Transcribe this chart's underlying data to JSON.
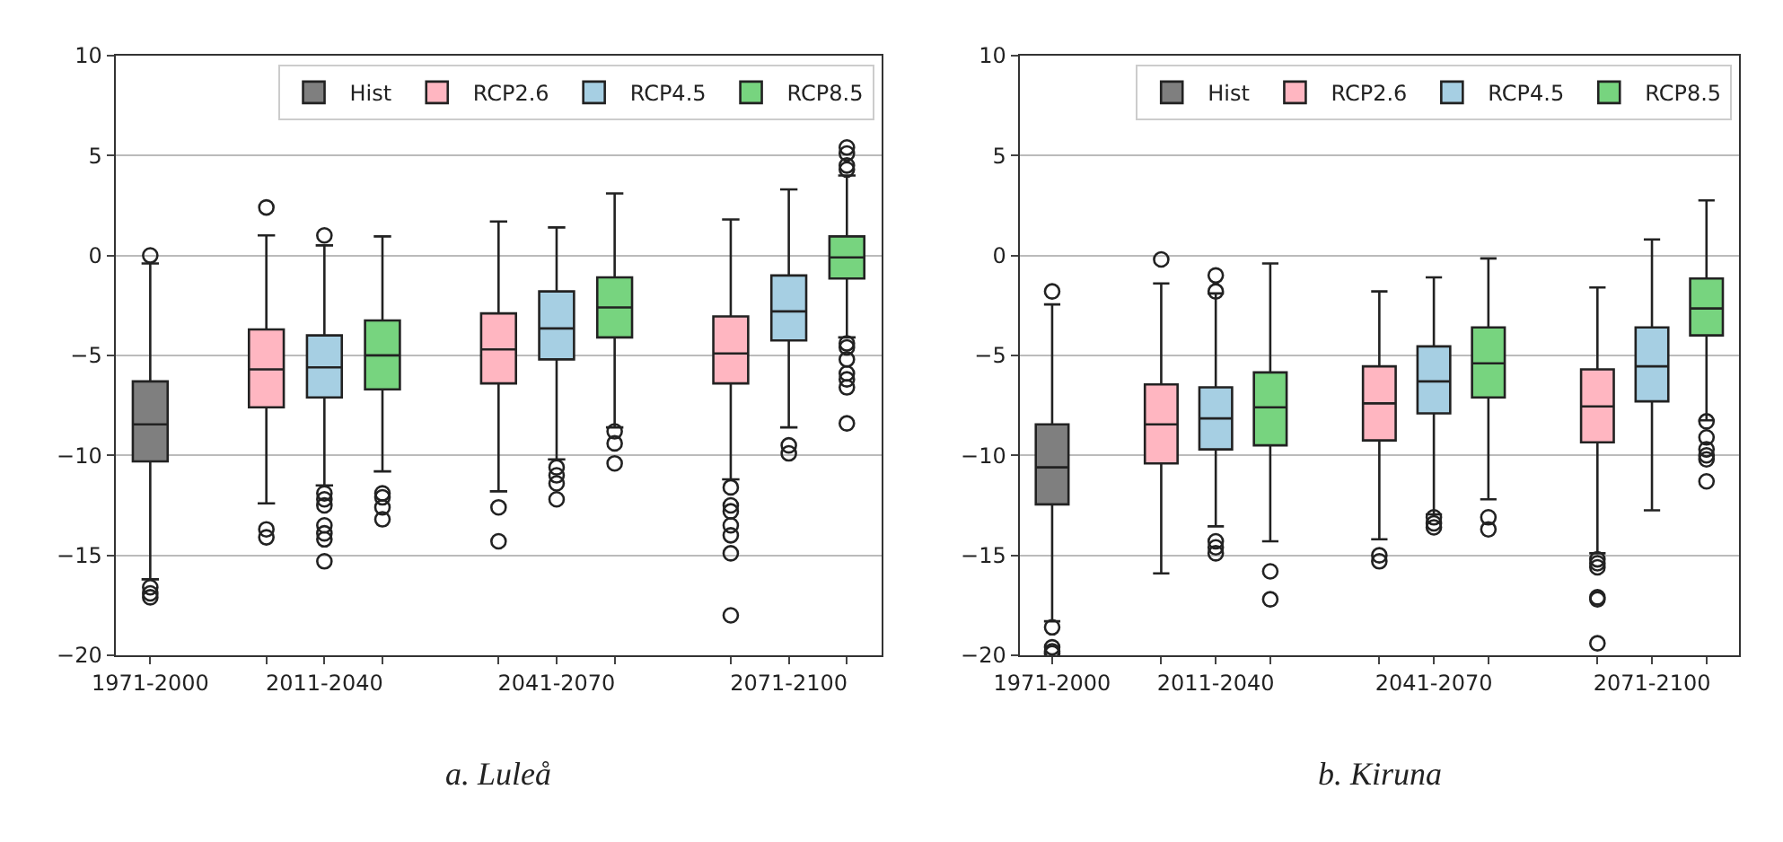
{
  "chart_data": [
    {
      "type": "box",
      "annotations": [
        "a. Luleå"
      ],
      "ylim": [
        -20,
        10
      ],
      "yticks": [
        -20,
        -15,
        -10,
        -5,
        0,
        5,
        10
      ],
      "grid": "y",
      "legend": "top right",
      "categories": [
        "1971-2000",
        null,
        null,
        "2011-2040",
        null,
        null,
        null,
        "2041-2070",
        null,
        null,
        null,
        "2071-2100",
        null
      ],
      "series": [
        {
          "name": "Hist",
          "color": "#7f7f7f",
          "boxes": [
            {
              "low": -16.2,
              "q1": -10.3,
              "median": -8.45,
              "q3": -6.3,
              "high": -0.4,
              "outliers": [
                0,
                -16.6,
                -16.9,
                -17.1
              ]
            },
            null,
            null,
            null,
            null,
            null,
            null,
            null,
            null,
            null,
            null,
            null,
            null
          ]
        },
        {
          "name": "RCP2.6",
          "color": "#ffb6c1",
          "boxes": [
            null,
            null,
            {
              "low": -12.4,
              "q1": -7.6,
              "median": -5.7,
              "q3": -3.7,
              "high": 1.0,
              "outliers": [
                2.4,
                -13.7,
                -14.1
              ]
            },
            null,
            null,
            null,
            {
              "low": -11.8,
              "q1": -6.4,
              "median": -4.7,
              "q3": -2.9,
              "high": 1.7,
              "outliers": [
                -12.6,
                -14.3
              ]
            },
            null,
            null,
            null,
            {
              "low": -11.2,
              "q1": -6.4,
              "median": -4.9,
              "q3": -3.05,
              "high": 1.8,
              "outliers": [
                -11.6,
                -12.5,
                -12.8,
                -13.5,
                -14.0,
                -14.9,
                -18.0
              ]
            },
            null,
            null
          ]
        },
        {
          "name": "RCP4.5",
          "color": "#a6cfe3",
          "boxes": [
            null,
            null,
            null,
            {
              "low": -11.5,
              "q1": -7.1,
              "median": -5.6,
              "q3": -4.0,
              "high": 0.5,
              "outliers": [
                1.0,
                -11.9,
                -12.2,
                -12.5,
                -13.5,
                -13.9,
                -14.2,
                -15.3
              ]
            },
            null,
            null,
            null,
            {
              "low": -10.2,
              "q1": -5.2,
              "median": -3.65,
              "q3": -1.8,
              "high": 1.4,
              "outliers": [
                -10.6,
                -11.0,
                -11.4,
                -12.2
              ]
            },
            null,
            null,
            null,
            {
              "low": -8.6,
              "q1": -4.25,
              "median": -2.8,
              "q3": -1.0,
              "high": 3.3,
              "outliers": [
                -9.5,
                -9.9
              ]
            },
            null
          ]
        },
        {
          "name": "RCP8.5",
          "color": "#77d47f",
          "boxes": [
            null,
            null,
            null,
            null,
            {
              "low": -10.8,
              "q1": -6.7,
              "median": -5.0,
              "q3": -3.25,
              "high": 0.95,
              "outliers": [
                -11.9,
                -12.1,
                -12.6,
                -13.2
              ]
            },
            null,
            null,
            null,
            {
              "low": -8.6,
              "q1": -4.1,
              "median": -2.6,
              "q3": -1.1,
              "high": 3.1,
              "outliers": [
                -8.8,
                -9.4,
                -10.4
              ]
            },
            null,
            null,
            null,
            {
              "low": -4.1,
              "q1": -1.15,
              "median": -0.1,
              "q3": 0.95,
              "high": 4.0,
              "outliers": [
                4.3,
                4.5,
                5.1,
                5.4,
                -4.4,
                -4.6,
                -5.2,
                -5.9,
                -6.2,
                -6.6,
                -8.4
              ]
            }
          ]
        }
      ]
    },
    {
      "type": "box",
      "annotations": [
        "b. Kiruna"
      ],
      "ylim": [
        -20,
        10
      ],
      "yticks": [
        -20,
        -15,
        -10,
        -5,
        0,
        5,
        10
      ],
      "grid": "y",
      "legend": "top right",
      "categories": [
        "1971-2000",
        null,
        null,
        "2011-2040",
        null,
        null,
        null,
        "2041-2070",
        null,
        null,
        null,
        "2071-2100",
        null
      ],
      "series": [
        {
          "name": "Hist",
          "color": "#7f7f7f",
          "boxes": [
            {
              "low": -18.3,
              "q1": -12.45,
              "median": -10.6,
              "q3": -8.45,
              "high": -2.45,
              "outliers": [
                -1.8,
                -18.6,
                -19.6,
                -19.8,
                -19.9
              ]
            },
            null,
            null,
            null,
            null,
            null,
            null,
            null,
            null,
            null,
            null,
            null,
            null
          ]
        },
        {
          "name": "RCP2.6",
          "color": "#ffb6c1",
          "boxes": [
            null,
            null,
            {
              "low": -15.9,
              "q1": -10.4,
              "median": -8.45,
              "q3": -6.45,
              "high": -1.4,
              "outliers": [
                -0.2
              ]
            },
            null,
            null,
            null,
            {
              "low": -14.2,
              "q1": -9.25,
              "median": -7.4,
              "q3": -5.55,
              "high": -1.8,
              "outliers": [
                -15.0,
                -15.3
              ]
            },
            null,
            null,
            null,
            {
              "low": -14.9,
              "q1": -9.35,
              "median": -7.55,
              "q3": -5.7,
              "high": -1.6,
              "outliers": [
                -15.2,
                -15.4,
                -15.6,
                -17.1,
                -17.2,
                -19.4
              ]
            },
            null,
            null
          ]
        },
        {
          "name": "RCP4.5",
          "color": "#a6cfe3",
          "boxes": [
            null,
            null,
            null,
            {
              "low": -13.55,
              "q1": -9.7,
              "median": -8.15,
              "q3": -6.6,
              "high": -1.9,
              "outliers": [
                -1.0,
                -1.8,
                -14.3,
                -14.6,
                -14.9
              ]
            },
            null,
            null,
            null,
            {
              "low": -12.95,
              "q1": -7.9,
              "median": -6.3,
              "q3": -4.55,
              "high": -1.1,
              "outliers": [
                -13.1,
                -13.4,
                -13.6
              ]
            },
            null,
            null,
            null,
            {
              "low": -12.75,
              "q1": -7.3,
              "median": -5.55,
              "q3": -3.6,
              "high": 0.8
            },
            null
          ]
        },
        {
          "name": "RCP8.5",
          "color": "#77d47f",
          "boxes": [
            null,
            null,
            null,
            null,
            {
              "low": -14.3,
              "q1": -9.5,
              "median": -7.6,
              "q3": -5.85,
              "high": -0.4,
              "outliers": [
                -15.8,
                -17.2
              ]
            },
            null,
            null,
            null,
            {
              "low": -12.2,
              "q1": -7.1,
              "median": -5.4,
              "q3": -3.6,
              "high": -0.15,
              "outliers": [
                -13.1,
                -13.7
              ]
            },
            null,
            null,
            null,
            {
              "low": -8.25,
              "q1": -4.0,
              "median": -2.65,
              "q3": -1.15,
              "high": 2.75,
              "outliers": [
                -8.3,
                -9.1,
                -9.7,
                -10.0,
                -10.2,
                -11.3
              ]
            }
          ]
        }
      ]
    }
  ]
}
